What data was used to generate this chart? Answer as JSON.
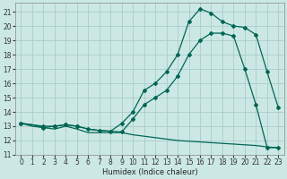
{
  "xlabel": "Humidex (Indice chaleur)",
  "bg_color": "#cce8e4",
  "grid_color": "#aacccc",
  "line_color": "#006655",
  "xlim": [
    -0.5,
    23.5
  ],
  "ylim": [
    11,
    21.6
  ],
  "yticks": [
    11,
    12,
    13,
    14,
    15,
    16,
    17,
    18,
    19,
    20,
    21
  ],
  "xticks": [
    0,
    1,
    2,
    3,
    4,
    5,
    6,
    7,
    8,
    9,
    10,
    11,
    12,
    13,
    14,
    15,
    16,
    17,
    18,
    19,
    20,
    21,
    22,
    23
  ],
  "line_bottom_x": [
    0,
    1,
    2,
    3,
    4,
    5,
    6,
    7,
    8,
    9,
    10,
    11,
    12,
    13,
    14,
    15,
    16,
    17,
    18,
    19,
    20,
    21,
    22,
    23
  ],
  "line_bottom_y": [
    13.2,
    13.0,
    12.9,
    12.8,
    13.0,
    12.8,
    12.55,
    12.55,
    12.55,
    12.55,
    12.4,
    12.3,
    12.2,
    12.1,
    12.0,
    11.95,
    11.9,
    11.85,
    11.8,
    11.75,
    11.7,
    11.65,
    11.55,
    11.5
  ],
  "line_mid_x": [
    0,
    1,
    2,
    3,
    4,
    5,
    6,
    7,
    8,
    9,
    10,
    11,
    12,
    13,
    14,
    15,
    16,
    17,
    18,
    19,
    20,
    21,
    22,
    23
  ],
  "line_mid_y": [
    13.2,
    13.1,
    13.0,
    13.0,
    13.1,
    13.0,
    12.8,
    12.7,
    12.65,
    12.6,
    13.5,
    14.5,
    15.0,
    15.5,
    16.5,
    18.0,
    19.0,
    19.5,
    19.5,
    19.3,
    17.0,
    14.5,
    11.5,
    11.5
  ],
  "line_top_x": [
    0,
    1,
    2,
    3,
    4,
    5,
    6,
    7,
    8,
    9,
    10,
    11,
    12,
    13,
    14,
    15,
    16,
    17,
    18,
    19,
    20,
    21,
    22,
    23
  ],
  "line_top_y": [
    13.2,
    13.1,
    12.9,
    13.0,
    13.1,
    13.0,
    12.8,
    12.7,
    12.65,
    13.2,
    14.0,
    15.5,
    16.0,
    16.8,
    18.0,
    20.3,
    21.2,
    20.9,
    20.3,
    20.0,
    19.9,
    19.4,
    16.8,
    14.3
  ],
  "marker_x_top": [
    0,
    2,
    3,
    4,
    5,
    9,
    10,
    11,
    12,
    13,
    14,
    15,
    16,
    17,
    18,
    19,
    20,
    21,
    22,
    23
  ],
  "marker_y_top": [
    13.2,
    12.9,
    13.0,
    13.1,
    13.0,
    13.2,
    14.0,
    15.5,
    16.0,
    16.8,
    18.0,
    20.3,
    21.2,
    20.9,
    20.3,
    20.0,
    19.9,
    19.4,
    16.8,
    14.3
  ],
  "marker_x_mid": [
    0,
    2,
    3,
    4,
    5,
    6,
    7,
    8,
    9,
    10,
    11,
    12,
    13,
    14,
    15,
    16,
    17,
    18,
    19,
    20,
    21,
    22,
    23
  ],
  "marker_y_mid": [
    13.2,
    13.0,
    13.0,
    13.1,
    13.0,
    12.8,
    12.7,
    12.65,
    12.6,
    13.5,
    14.5,
    15.0,
    15.5,
    16.5,
    18.0,
    19.0,
    19.5,
    19.5,
    19.3,
    17.0,
    14.5,
    11.5,
    11.5
  ]
}
